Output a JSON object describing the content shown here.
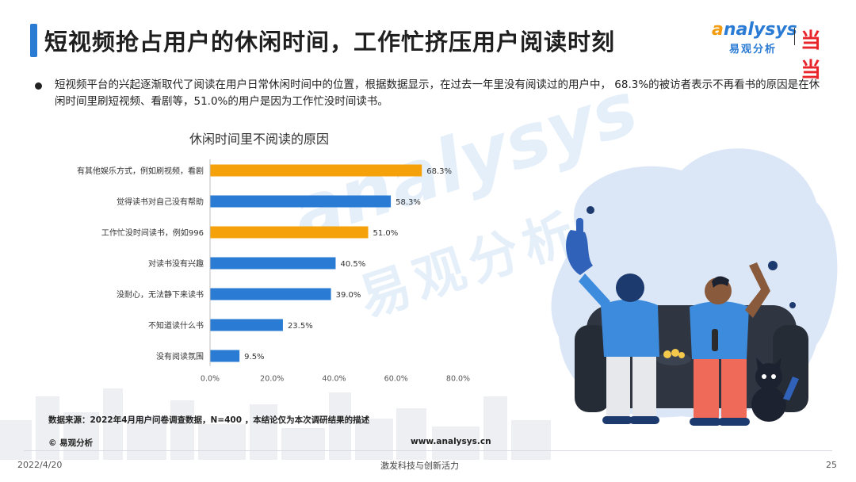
{
  "header": {
    "title": "短视频抢占用户的休闲时间，工作忙挤压用户阅读时刻",
    "logo_en_prefix": "nalysys",
    "logo_en_initial": "a",
    "logo_cn": "易观分析",
    "partner_logo": "当当"
  },
  "body": {
    "paragraph": "短视频平台的兴起逐渐取代了阅读在用户日常休闲时间中的位置，根据数据显示，在过去一年里没有阅读过的用户中， 68.3%的被访者表示不再看书的原因是在休闲时间里刷短视频、看剧等，51.0%的用户是因为工作忙没时间读书。"
  },
  "chart_data": {
    "type": "bar",
    "orientation": "horizontal",
    "title": "休闲时间里不阅读的原因",
    "categories": [
      "有其他娱乐方式，例如刷视频，看剧",
      "觉得读书对自己没有帮助",
      "工作忙没时间读书，例如996",
      "对读书没有兴趣",
      "没耐心，无法静下来读书",
      "不知道读什么书",
      "没有阅读氛围"
    ],
    "values": [
      68.3,
      58.3,
      51.0,
      40.5,
      39.0,
      23.5,
      9.5
    ],
    "value_labels": [
      "68.3%",
      "58.3%",
      "51.0%",
      "40.5%",
      "39.0%",
      "23.5%",
      "9.5%"
    ],
    "highlight": [
      true,
      false,
      true,
      false,
      false,
      false,
      false
    ],
    "xlim": [
      0,
      80
    ],
    "xticks": [
      "0.0%",
      "20.0%",
      "40.0%",
      "60.0%",
      "80.0%"
    ],
    "grid": false,
    "colors": {
      "highlight": "#f5a20a",
      "normal": "#2a7bd4"
    }
  },
  "watermark": {
    "en": "analysys",
    "cn": "易观分析"
  },
  "footer": {
    "source": "数据来源：2022年4月用户问卷调查数据，N=400 ，本结论仅为本次调研结果的描述",
    "copyright": "© 易观分析",
    "site": "www.analysys.cn",
    "date": "2022/4/20",
    "slogan": "激发科技与创新活力",
    "page": "25"
  }
}
